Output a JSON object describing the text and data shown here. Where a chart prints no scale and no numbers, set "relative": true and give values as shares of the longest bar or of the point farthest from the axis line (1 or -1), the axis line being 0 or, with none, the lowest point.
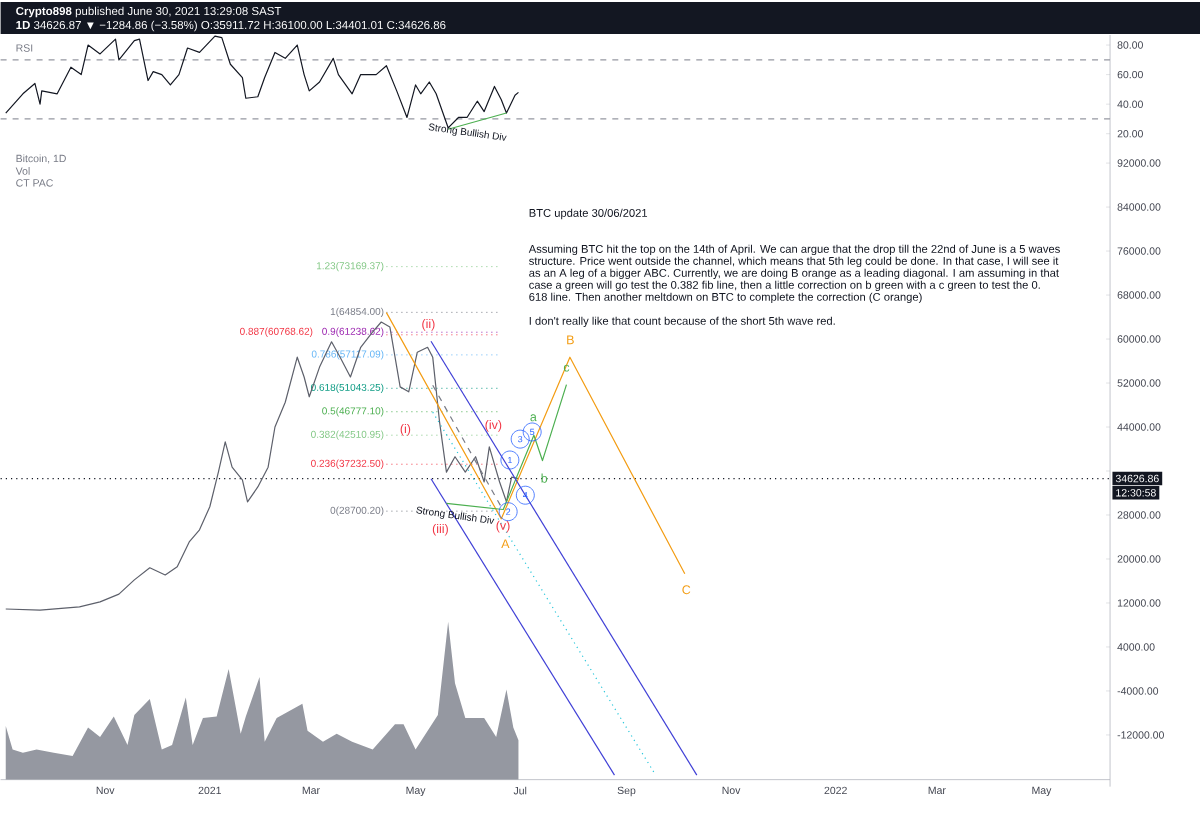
{
  "chart_data": [
    {
      "type": "line",
      "title": "**Crypto898** published June 30, 2021 13:29:08 SAST",
      "subtitle": "**1D** 34626.87 ▼ −1284.86 (−3.58%) O:35911.72 H:36100.00 L:34401.01 C:34626.86",
      "annotations": [
        "RSI",
        "Strong Bullish Div"
      ],
      "xlim": [
        "2020-09-01",
        "2022-06-10"
      ],
      "ylim": [
        12.4,
        86.8
      ],
      "yticks": [
        {
          "value": 20,
          "label": "20.00"
        },
        {
          "value": 40,
          "label": "40.00"
        },
        {
          "value": 60,
          "label": "60.00"
        },
        {
          "value": 80,
          "label": "80.00"
        }
      ],
      "tick_labels": "y",
      "ref_lines": [
        {
          "axis": "y",
          "value": 70,
          "color": "#9598a1",
          "line_style": "dashed"
        },
        {
          "axis": "y",
          "value": 30,
          "color": "#9598a1",
          "line_style": "dashed"
        }
      ],
      "series": [
        {
          "color": "#131722",
          "x": [
            "2020-09-04",
            "2020-09-14",
            "2020-09-21",
            "2020-09-24",
            "2020-09-25",
            "2020-10-04",
            "2020-10-12",
            "2020-10-18",
            "2020-10-22",
            "2020-10-29",
            "2020-11-07",
            "2020-11-09",
            "2020-11-18",
            "2020-11-21",
            "2020-11-26",
            "2020-11-29",
            "2020-12-04",
            "2020-12-09",
            "2020-12-14",
            "2020-12-19",
            "2020-12-26",
            "2021-01-04",
            "2021-01-08",
            "2021-01-13",
            "2021-01-20",
            "2021-01-22",
            "2021-01-29",
            "2021-02-02",
            "2021-02-08",
            "2021-02-14",
            "2021-02-21",
            "2021-02-25",
            "2021-02-28",
            "2021-03-06",
            "2021-03-14",
            "2021-03-17",
            "2021-03-25",
            "2021-03-30",
            "2021-04-08",
            "2021-04-14",
            "2021-04-20",
            "2021-04-26",
            "2021-05-01",
            "2021-05-04",
            "2021-05-09",
            "2021-05-13",
            "2021-05-20",
            "2021-05-26",
            "2021-05-31",
            "2021-06-06",
            "2021-06-10",
            "2021-06-16",
            "2021-06-20",
            "2021-06-23",
            "2021-06-28",
            "2021-06-30"
          ],
          "values": [
            34,
            47,
            54,
            40,
            49,
            47,
            65,
            60,
            80,
            74,
            84,
            70,
            83,
            84,
            56,
            62,
            60,
            53,
            60,
            78,
            75,
            86,
            85,
            67,
            58,
            44,
            45,
            58,
            75,
            71,
            80,
            60,
            49,
            55,
            71,
            60,
            47,
            60,
            60,
            66,
            49,
            31,
            53,
            47,
            55,
            47,
            24,
            31,
            31,
            42,
            35,
            52,
            43,
            34,
            46,
            48
          ]
        },
        {
          "color": "#4caf50",
          "x": [
            "2021-05-20",
            "2021-06-23"
          ],
          "values": [
            23,
            34
          ]
        }
      ]
    },
    {
      "type": "line",
      "title": "Bitcoin, 1D",
      "annotations": [
        "Vol",
        "CT PAC",
        "BTC update 30/06/2021",
        "Assuming BTC hit the top on the 14th of April. We can argue that the drop till the 22nd of June is a 5 waves",
        "structure. Price went outside the channel, which means that 5th leg could be done. In that case, I will see it",
        "as an A leg of a bigger ABC. Currently, we are doing B orange as a leading diagonal. I am assuming in that",
        "case a green will go test the 0.382 fib line, then a little correction on b green with a c green to test the 0.",
        "618 line. Then another meltdown on BTC to complete the correction (C orange)",
        "I don't really like that count because of the short 5th wave red.",
        "12:30:58",
        "(i)",
        "(ii)",
        "(iii)",
        "(iv)",
        "A",
        "B",
        "C",
        "a",
        {
          "text": "(v)",
          "x": "2021-06-21",
          "y": 25900
        },
        {
          "text": "b",
          "x": "2021-07-15",
          "y": 34700
        },
        {
          "text": "c",
          "x": "2021-07-28",
          "y": 54700
        },
        {
          "text": "1",
          "x": "2021-06-25",
          "y": 38000
        },
        {
          "text": "2",
          "x": "2021-06-24",
          "y": 28600
        },
        {
          "text": "3",
          "x": "2021-07-01",
          "y": 41800
        },
        {
          "text": "4",
          "x": "2021-07-04",
          "y": 31600
        },
        {
          "text": "5",
          "x": "2021-07-08",
          "y": 43100
        },
        {
          "text": "Strong Bullish Div",
          "x": "2021-05-24",
          "y": 27800
        }
      ],
      "xlim": [
        "2020-09-01",
        "2022-06-10"
      ],
      "ylim": [
        -21400,
        95300
      ],
      "yticks": [
        {
          "value": -12000,
          "label": "-12000.00"
        },
        {
          "value": -4000,
          "label": "-4000.00"
        },
        {
          "value": 4000,
          "label": "4000.00"
        },
        {
          "value": 12000,
          "label": "12000.00"
        },
        {
          "value": 20000,
          "label": "20000.00"
        },
        {
          "value": 28000,
          "label": "28000.00"
        },
        {
          "value": 36000,
          "label": null
        },
        {
          "value": 44000,
          "label": "44000.00"
        },
        {
          "value": 52000,
          "label": "52000.00"
        },
        {
          "value": 60000,
          "label": "60000.00"
        },
        {
          "value": 68000,
          "label": "68000.00"
        },
        {
          "value": 76000,
          "label": "76000.00"
        },
        {
          "value": 84000,
          "label": "84000.00"
        },
        {
          "value": 92000,
          "label": "92000.00"
        }
      ],
      "tick_labels": "y",
      "ref_lines": [
        {
          "axis": "y",
          "value": 34626.86,
          "label": "34626.86",
          "color": "#131722",
          "line_style": "dotted"
        },
        {
          "axis": "y",
          "value": 73169.37,
          "label": "1.23(73169.37)",
          "color": "#81c784",
          "line_style": "dotted"
        },
        {
          "axis": "y",
          "value": 64854.0,
          "label": "1(64854.00)",
          "color": "#787b86",
          "line_style": "dotted"
        },
        {
          "axis": "y",
          "value": 61238.62,
          "label": "0.9(61238.62)",
          "color": "#9c27b0",
          "line_style": "dotted"
        },
        {
          "axis": "y",
          "value": 60768.62,
          "label": "0.887(60768.62)",
          "color": "#f23645",
          "line_style": "dotted"
        },
        {
          "axis": "y",
          "value": 57117.09,
          "label": "0.786(57117.09)",
          "color": "#64b5f6",
          "line_style": "dotted"
        },
        {
          "axis": "y",
          "value": 51043.25,
          "label": "0.618(51043.25)",
          "color": "#089981",
          "line_style": "dotted"
        },
        {
          "axis": "y",
          "value": 46777.1,
          "label": "0.5(46777.10)",
          "color": "#4caf50",
          "line_style": "dotted"
        },
        {
          "axis": "y",
          "value": 42510.95,
          "label": "0.382(42510.95)",
          "color": "#81c784",
          "line_style": "dotted"
        },
        {
          "axis": "y",
          "value": 37232.5,
          "label": "0.236(37232.50)",
          "color": "#f23645",
          "line_style": "dotted"
        },
        {
          "axis": "y",
          "value": 28700.2,
          "label": "0(28700.20)",
          "color": "#787b86",
          "line_style": "dotted"
        }
      ],
      "series": [
        {
          "color": "#5d606b",
          "x": [
            "2020-09-04",
            "2020-09-24",
            "2020-10-17",
            "2020-10-29",
            "2020-11-09",
            "2020-11-18",
            "2020-11-27",
            "2020-12-06",
            "2020-12-13",
            "2020-12-20",
            "2020-12-26",
            "2021-01-01",
            "2021-01-06",
            "2021-01-10",
            "2021-01-14",
            "2021-01-20",
            "2021-01-23",
            "2021-01-29",
            "2021-02-04",
            "2021-02-08",
            "2021-02-14",
            "2021-02-21",
            "2021-02-25",
            "2021-02-28",
            "2021-03-06",
            "2021-03-13",
            "2021-03-18",
            "2021-03-24",
            "2021-03-30",
            "2021-04-06",
            "2021-04-11",
            "2021-04-16",
            "2021-04-22",
            "2021-04-27",
            "2021-05-02",
            "2021-05-08",
            "2021-05-11",
            "2021-05-15",
            "2021-05-19",
            "2021-05-24",
            "2021-05-30",
            "2021-06-05",
            "2021-06-10",
            "2021-06-13",
            "2021-06-19",
            "2021-06-23",
            "2021-06-26",
            "2021-06-30"
          ],
          "values": [
            10900,
            10700,
            11300,
            12200,
            13600,
            16200,
            18400,
            17100,
            18600,
            23100,
            25300,
            29500,
            35800,
            41300,
            36700,
            34400,
            30400,
            33100,
            36700,
            44000,
            48500,
            56700,
            53100,
            49500,
            54900,
            59500,
            56700,
            53100,
            58500,
            61300,
            63100,
            62200,
            51300,
            50400,
            57600,
            58500,
            56700,
            44900,
            35800,
            38600,
            35800,
            38600,
            34000,
            40400,
            34000,
            30400,
            34900,
            34600
          ]
        },
        {
          "color": "#f39c12",
          "x": [
            "2021-04-14",
            "2021-06-20",
            "2021-07-30",
            "2021-10-05"
          ],
          "values": [
            64800,
            27300,
            56700,
            17300
          ]
        },
        {
          "color": "#4caf50",
          "x": [
            "2021-06-21",
            "2021-07-09",
            "2021-07-14",
            "2021-07-28"
          ],
          "values": [
            28900,
            42500,
            37900,
            51700
          ]
        },
        {
          "color": "#3f3fd6",
          "x": [
            "2021-05-10",
            "2021-10-12"
          ],
          "values": [
            59600,
            -19300
          ]
        },
        {
          "color": "#3f3fd6",
          "x": [
            "2021-05-10",
            "2021-08-25"
          ],
          "values": [
            34600,
            -19300
          ]
        },
        {
          "color": "#26c6da",
          "line_style": "dotted",
          "x": [
            "2021-05-11",
            "2021-09-18"
          ],
          "values": [
            46700,
            -19300
          ]
        },
        {
          "color": "#787b86",
          "line_style": "dashed",
          "x": [
            "2021-05-11",
            "2021-06-21"
          ],
          "values": [
            51600,
            28900
          ]
        },
        {
          "color": "#4caf50",
          "x": [
            "2021-05-19",
            "2021-06-21"
          ],
          "values": [
            30100,
            29000
          ]
        }
      ]
    },
    {
      "type": "area",
      "relative": true,
      "xlim": [
        "2020-09-01",
        "2022-06-10"
      ],
      "xticks": [
        {
          "value": "2020-11-01",
          "label": "Nov"
        },
        {
          "value": "2021-01-01",
          "label": "2021"
        },
        {
          "value": "2021-03-01",
          "label": "Mar"
        },
        {
          "value": "2021-05-01",
          "label": "May"
        },
        {
          "value": "2021-07-01",
          "label": "Jul"
        },
        {
          "value": "2021-09-01",
          "label": "Sep"
        },
        {
          "value": "2021-11-01",
          "label": "Nov"
        },
        {
          "value": "2022-01-01",
          "label": "2022"
        },
        {
          "value": "2022-03-01",
          "label": "Mar"
        },
        {
          "value": "2022-05-01",
          "label": "May"
        }
      ],
      "tick_labels": "x",
      "series": [
        {
          "color": "#9598a1",
          "x": [
            "2020-09-04",
            "2020-09-08",
            "2020-09-14",
            "2020-09-22",
            "2020-10-02",
            "2020-10-13",
            "2020-10-22",
            "2020-10-29",
            "2020-11-06",
            "2020-11-14",
            "2020-11-18",
            "2020-11-27",
            "2020-12-04",
            "2020-12-10",
            "2020-12-18",
            "2020-12-22",
            "2020-12-28",
            "2021-01-05",
            "2021-01-12",
            "2021-01-19",
            "2021-01-22",
            "2021-01-30",
            "2021-02-02",
            "2021-02-09",
            "2021-02-24",
            "2021-02-27",
            "2021-03-08",
            "2021-03-16",
            "2021-03-25",
            "2021-04-06",
            "2021-04-19",
            "2021-04-24",
            "2021-05-01",
            "2021-05-14",
            "2021-05-20",
            "2021-05-24",
            "2021-05-30",
            "2021-06-10",
            "2021-06-17",
            "2021-06-23",
            "2021-06-27",
            "2021-06-30"
          ],
          "values": [
            0.34,
            0.19,
            0.17,
            0.19,
            0.17,
            0.15,
            0.33,
            0.27,
            0.4,
            0.22,
            0.41,
            0.51,
            0.19,
            0.22,
            0.52,
            0.22,
            0.39,
            0.4,
            0.7,
            0.29,
            0.4,
            0.65,
            0.24,
            0.39,
            0.48,
            0.31,
            0.24,
            0.29,
            0.24,
            0.19,
            0.35,
            0.35,
            0.19,
            0.41,
            1,
            0.61,
            0.39,
            0.39,
            0.27,
            0.57,
            0.33,
            0.25
          ]
        }
      ]
    }
  ]
}
